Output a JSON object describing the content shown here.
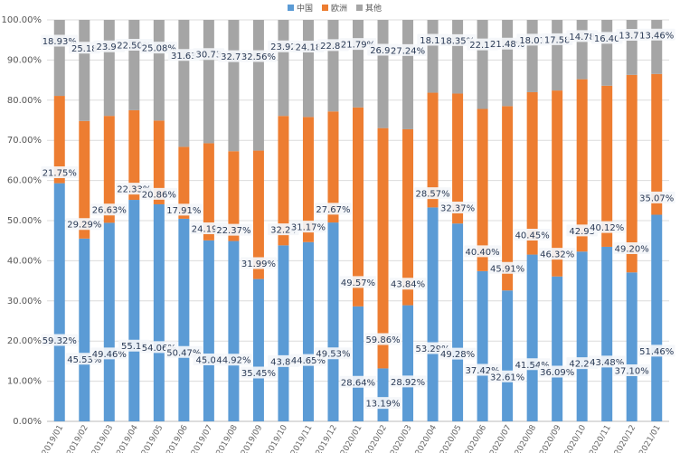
{
  "chart_data": {
    "type": "bar",
    "stacked": true,
    "title": "",
    "xlabel": "",
    "ylabel": "",
    "ylim": [
      0,
      100
    ],
    "y_ticks": [
      "0.00%",
      "10.00%",
      "20.00%",
      "30.00%",
      "40.00%",
      "50.00%",
      "60.00%",
      "70.00%",
      "80.00%",
      "90.00%",
      "100.00%"
    ],
    "grid": true,
    "legend_position": "top",
    "categories": [
      "2019/01",
      "2019/02",
      "2019/03",
      "2019/04",
      "2019/05",
      "2019/06",
      "2019/07",
      "2019/08",
      "2019/09",
      "2019/10",
      "2019/11",
      "2019/12",
      "2020/01",
      "2020/02",
      "2020/03",
      "2020/04",
      "2020/05",
      "2020/06",
      "2020/07",
      "2020/08",
      "2020/09",
      "2020/10",
      "2020/11",
      "2020/12",
      "2021/01"
    ],
    "series": [
      {
        "name": "中国",
        "color": "#5b9bd5",
        "values": [
          59.32,
          45.53,
          49.46,
          55.17,
          54.06,
          50.47,
          45.08,
          44.92,
          35.45,
          43.84,
          44.65,
          49.53,
          28.64,
          13.19,
          28.92,
          53.29,
          49.28,
          37.42,
          32.61,
          41.54,
          36.09,
          42.29,
          43.48,
          37.1,
          51.46
        ],
        "labels": [
          "59.32%",
          "45.53%",
          "49.46%",
          "55.17",
          "54.06%",
          "50.47%",
          "45.08",
          "44.92%",
          "35.45%",
          "43.84",
          "44.65%",
          "49.53%",
          "28.64%",
          "13.19%",
          "28.92%",
          "53.29%",
          "49.28%",
          "37.42%",
          "32.61%",
          "41.54%",
          "36.09%",
          "42.29",
          "43.48%",
          "37.10%",
          "51.46%"
        ]
      },
      {
        "name": "欧洲",
        "color": "#ed7d31",
        "values": [
          21.75,
          29.29,
          26.63,
          22.33,
          20.86,
          17.91,
          24.19,
          22.37,
          31.99,
          32.24,
          31.17,
          27.67,
          49.57,
          59.86,
          43.84,
          28.57,
          32.37,
          40.4,
          45.91,
          40.45,
          46.32,
          42.93,
          40.12,
          49.2,
          35.07
        ],
        "labels": [
          "21.75%",
          "29.29%",
          "26.63%",
          "22.33%",
          "20.86%",
          "17.91%",
          "24.19%",
          "22.37%",
          "31.99%",
          "32.24",
          "31.17%",
          "27.67%",
          "49.57%",
          "59.86%",
          "43.84%",
          "28.57%",
          "32.37%",
          "40.40%",
          "45.91%",
          "40.45%",
          "46.32%",
          "42.93",
          "40.12%",
          "49.20%",
          "35.07%"
        ]
      },
      {
        "name": "其他",
        "color": "#a5a5a5",
        "values": [
          18.93,
          25.18,
          23.91,
          22.5,
          25.08,
          31.63,
          30.73,
          32.71,
          32.56,
          23.92,
          24.18,
          22.8,
          21.79,
          26.95,
          27.24,
          18.14,
          18.35,
          22.18,
          21.48,
          18.01,
          17.58,
          14.78,
          16.4,
          13.7,
          13.46
        ],
        "labels": [
          "18.93%",
          "25.18",
          "23.91",
          "22.50%",
          "25.08%",
          "31.63",
          "30.73",
          "32.71",
          "32.56%",
          "23.92",
          "24.18",
          "22.80",
          "21.79%",
          "26.95",
          "27.24%",
          "18.14",
          "18.35%",
          "22.18",
          "21.48%",
          "18.01",
          "17.58",
          "14.78",
          "16.40",
          "13.70",
          "13.46%"
        ]
      }
    ]
  }
}
